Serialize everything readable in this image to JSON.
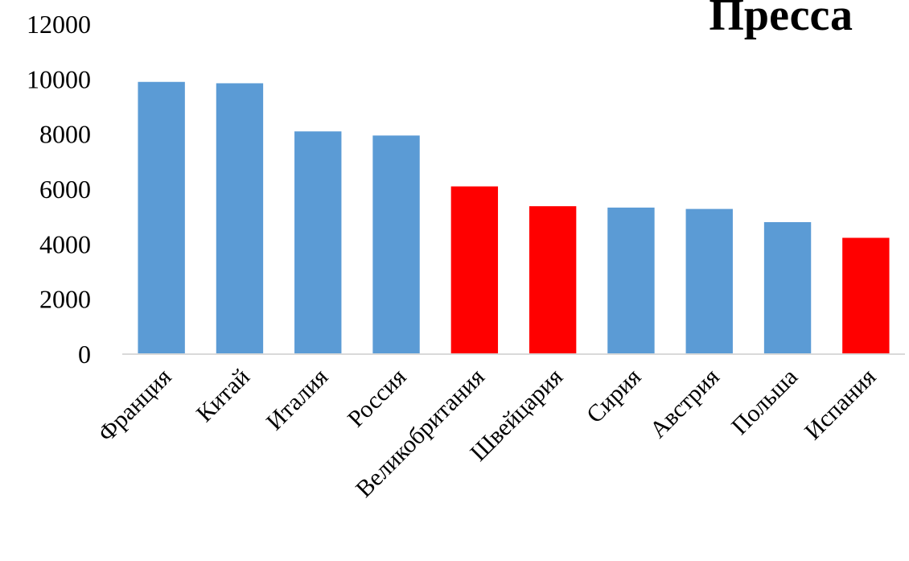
{
  "chart_data": {
    "type": "bar",
    "title": "Пресса",
    "xlabel": "",
    "ylabel": "",
    "categories": [
      "Франция",
      "Китай",
      "Италия",
      "Россия",
      "Великобритания",
      "Швейцария",
      "Сирия",
      "Австрия",
      "Польша",
      "Испания"
    ],
    "values": [
      9900,
      9850,
      8100,
      7950,
      6100,
      5380,
      5330,
      5280,
      4800,
      4230
    ],
    "bar_colors": [
      "#5b9bd5",
      "#5b9bd5",
      "#5b9bd5",
      "#5b9bd5",
      "#ff0000",
      "#ff0000",
      "#5b9bd5",
      "#5b9bd5",
      "#5b9bd5",
      "#ff0000"
    ],
    "ylim": [
      0,
      12000
    ],
    "yticks": [
      0,
      2000,
      4000,
      6000,
      8000,
      10000,
      12000
    ],
    "grid": false,
    "legend": "none"
  }
}
